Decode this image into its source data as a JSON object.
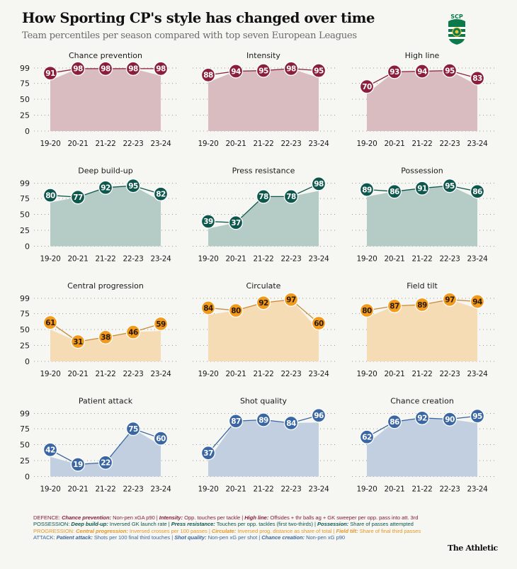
{
  "header": {
    "title": "How Sporting CP's style has changed over time",
    "subtitle": "Team percentiles per season compared with top seven European Leagues",
    "logo_text": "SCP"
  },
  "colors": {
    "defence": {
      "marker": "#8a1e3b",
      "fill": "#d8bcc0",
      "line": "#8a1e3b",
      "text": "#ffffff",
      "legend": "#8a1e3b"
    },
    "possession": {
      "marker": "#0e574d",
      "fill": "#b5cbc6",
      "line": "#0e574d",
      "text": "#ffffff",
      "legend": "#0e574d"
    },
    "progression": {
      "marker": "#f29a1c",
      "fill": "#f6dcb5",
      "line": "#c98a35",
      "text": "#2b1a08",
      "legend": "#e2992e"
    },
    "attack": {
      "marker": "#3a67a3",
      "fill": "#c2cfe0",
      "line": "#3a67a3",
      "text": "#ffffff",
      "legend": "#3a67a3"
    },
    "background": "#f6f6f2"
  },
  "chart_data": [
    {
      "type": "area",
      "group": "defence",
      "title": "Chance prevention",
      "categories": [
        "19-20",
        "20-21",
        "21-22",
        "22-23",
        "23-24"
      ],
      "values": [
        91,
        98,
        98,
        98,
        98
      ],
      "ylim": [
        0,
        99
      ],
      "yticks": [
        "99",
        "75",
        "50",
        "25",
        "0"
      ],
      "ytick_values": [
        99,
        75,
        50,
        25,
        0
      ],
      "show_yticks": true,
      "grid": "dotted"
    },
    {
      "type": "area",
      "group": "defence",
      "title": "Intensity",
      "categories": [
        "19-20",
        "20-21",
        "21-22",
        "22-23",
        "23-24"
      ],
      "values": [
        88,
        94,
        95,
        98,
        95
      ],
      "ylim": [
        0,
        99
      ],
      "ytick_values": [
        99,
        75,
        50,
        25,
        0
      ],
      "show_yticks": false,
      "grid": "dotted"
    },
    {
      "type": "area",
      "group": "defence",
      "title": "High line",
      "categories": [
        "19-20",
        "20-21",
        "21-22",
        "22-23",
        "23-24"
      ],
      "values": [
        70,
        93,
        94,
        95,
        83
      ],
      "ylim": [
        0,
        99
      ],
      "ytick_values": [
        99,
        75,
        50,
        25,
        0
      ],
      "show_yticks": false,
      "grid": "dotted"
    },
    {
      "type": "area",
      "group": "possession",
      "title": "Deep build-up",
      "categories": [
        "19-20",
        "20-21",
        "21-22",
        "22-23",
        "23-24"
      ],
      "values": [
        80,
        77,
        92,
        95,
        82
      ],
      "ylim": [
        0,
        99
      ],
      "yticks": [
        "99",
        "75",
        "50",
        "25",
        "0"
      ],
      "ytick_values": [
        99,
        75,
        50,
        25,
        0
      ],
      "show_yticks": true,
      "grid": "dotted"
    },
    {
      "type": "area",
      "group": "possession",
      "title": "Press resistance",
      "categories": [
        "19-20",
        "20-21",
        "21-22",
        "22-23",
        "23-24"
      ],
      "values": [
        39,
        37,
        78,
        78,
        98
      ],
      "ylim": [
        0,
        99
      ],
      "ytick_values": [
        99,
        75,
        50,
        25,
        0
      ],
      "show_yticks": false,
      "grid": "dotted"
    },
    {
      "type": "area",
      "group": "possession",
      "title": "Possession",
      "categories": [
        "19-20",
        "20-21",
        "21-22",
        "22-23",
        "23-24"
      ],
      "values": [
        89,
        86,
        91,
        95,
        86
      ],
      "ylim": [
        0,
        99
      ],
      "ytick_values": [
        99,
        75,
        50,
        25,
        0
      ],
      "show_yticks": false,
      "grid": "dotted"
    },
    {
      "type": "area",
      "group": "progression",
      "title": "Central progression",
      "categories": [
        "19-20",
        "20-21",
        "21-22",
        "22-23",
        "23-24"
      ],
      "values": [
        61,
        31,
        38,
        46,
        59
      ],
      "ylim": [
        0,
        99
      ],
      "yticks": [
        "99",
        "75",
        "50",
        "25",
        "0"
      ],
      "ytick_values": [
        99,
        75,
        50,
        25,
        0
      ],
      "show_yticks": true,
      "grid": "dotted"
    },
    {
      "type": "area",
      "group": "progression",
      "title": "Circulate",
      "categories": [
        "19-20",
        "20-21",
        "21-22",
        "22-23",
        "23-24"
      ],
      "values": [
        84,
        80,
        92,
        97,
        60
      ],
      "ylim": [
        0,
        99
      ],
      "ytick_values": [
        99,
        75,
        50,
        25,
        0
      ],
      "show_yticks": false,
      "grid": "dotted"
    },
    {
      "type": "area",
      "group": "progression",
      "title": "Field tilt",
      "categories": [
        "19-20",
        "20-21",
        "21-22",
        "22-23",
        "23-24"
      ],
      "values": [
        80,
        87,
        89,
        97,
        94
      ],
      "ylim": [
        0,
        99
      ],
      "ytick_values": [
        99,
        75,
        50,
        25,
        0
      ],
      "show_yticks": false,
      "grid": "dotted"
    },
    {
      "type": "area",
      "group": "attack",
      "title": "Patient attack",
      "categories": [
        "19-20",
        "20-21",
        "21-22",
        "22-23",
        "23-24"
      ],
      "values": [
        42,
        19,
        22,
        75,
        60
      ],
      "ylim": [
        0,
        99
      ],
      "yticks": [
        "99",
        "75",
        "50",
        "25",
        "0"
      ],
      "ytick_values": [
        99,
        75,
        50,
        25,
        0
      ],
      "show_yticks": true,
      "grid": "dotted"
    },
    {
      "type": "area",
      "group": "attack",
      "title": "Shot quality",
      "categories": [
        "19-20",
        "20-21",
        "21-22",
        "22-23",
        "23-24"
      ],
      "values": [
        37,
        87,
        89,
        84,
        96
      ],
      "ylim": [
        0,
        99
      ],
      "ytick_values": [
        99,
        75,
        50,
        25,
        0
      ],
      "show_yticks": false,
      "grid": "dotted"
    },
    {
      "type": "area",
      "group": "attack",
      "title": "Chance creation",
      "categories": [
        "19-20",
        "20-21",
        "21-22",
        "22-23",
        "23-24"
      ],
      "values": [
        62,
        86,
        92,
        90,
        95
      ],
      "ylim": [
        0,
        99
      ],
      "ytick_values": [
        99,
        75,
        50,
        25,
        0
      ],
      "show_yticks": false,
      "grid": "dotted"
    }
  ],
  "legend": [
    {
      "group": "defence",
      "label": "DEFENCE:",
      "items": [
        {
          "name": "Chance prevention:",
          "desc": "Non-pen xGA p90"
        },
        {
          "name": "Intensity:",
          "desc": "Opp. touches per tackle"
        },
        {
          "name": "High line:",
          "desc": "Offsides + thr balls ag + GK sweeper per opp. pass into att. 3rd"
        }
      ]
    },
    {
      "group": "possession",
      "label": "POSSESSION:",
      "items": [
        {
          "name": "Deep build-up:",
          "desc": "Inversed GK launch rate"
        },
        {
          "name": "Press resistance:",
          "desc": "Touches per opp. tackles (first two-thirds)"
        },
        {
          "name": "Possession:",
          "desc": "Share of passes attempted"
        }
      ]
    },
    {
      "group": "progression",
      "label": "PROGRESSION:",
      "items": [
        {
          "name": "Central progression:",
          "desc": "Inversed crosses per 100 passes"
        },
        {
          "name": "Circulate:",
          "desc": "Inversed prog. distance as share of total"
        },
        {
          "name": "Field tilt:",
          "desc": "Share of final third passes"
        }
      ]
    },
    {
      "group": "attack",
      "label": "ATTACK:",
      "items": [
        {
          "name": "Patient attack:",
          "desc": "Shots per 100 final third touches"
        },
        {
          "name": "Shot quality:",
          "desc": "Non-pen xG per shot"
        },
        {
          "name": "Chance creation:",
          "desc": "Non-pen xG p90"
        }
      ]
    }
  ],
  "footer": {
    "brand": "The Athletic"
  }
}
